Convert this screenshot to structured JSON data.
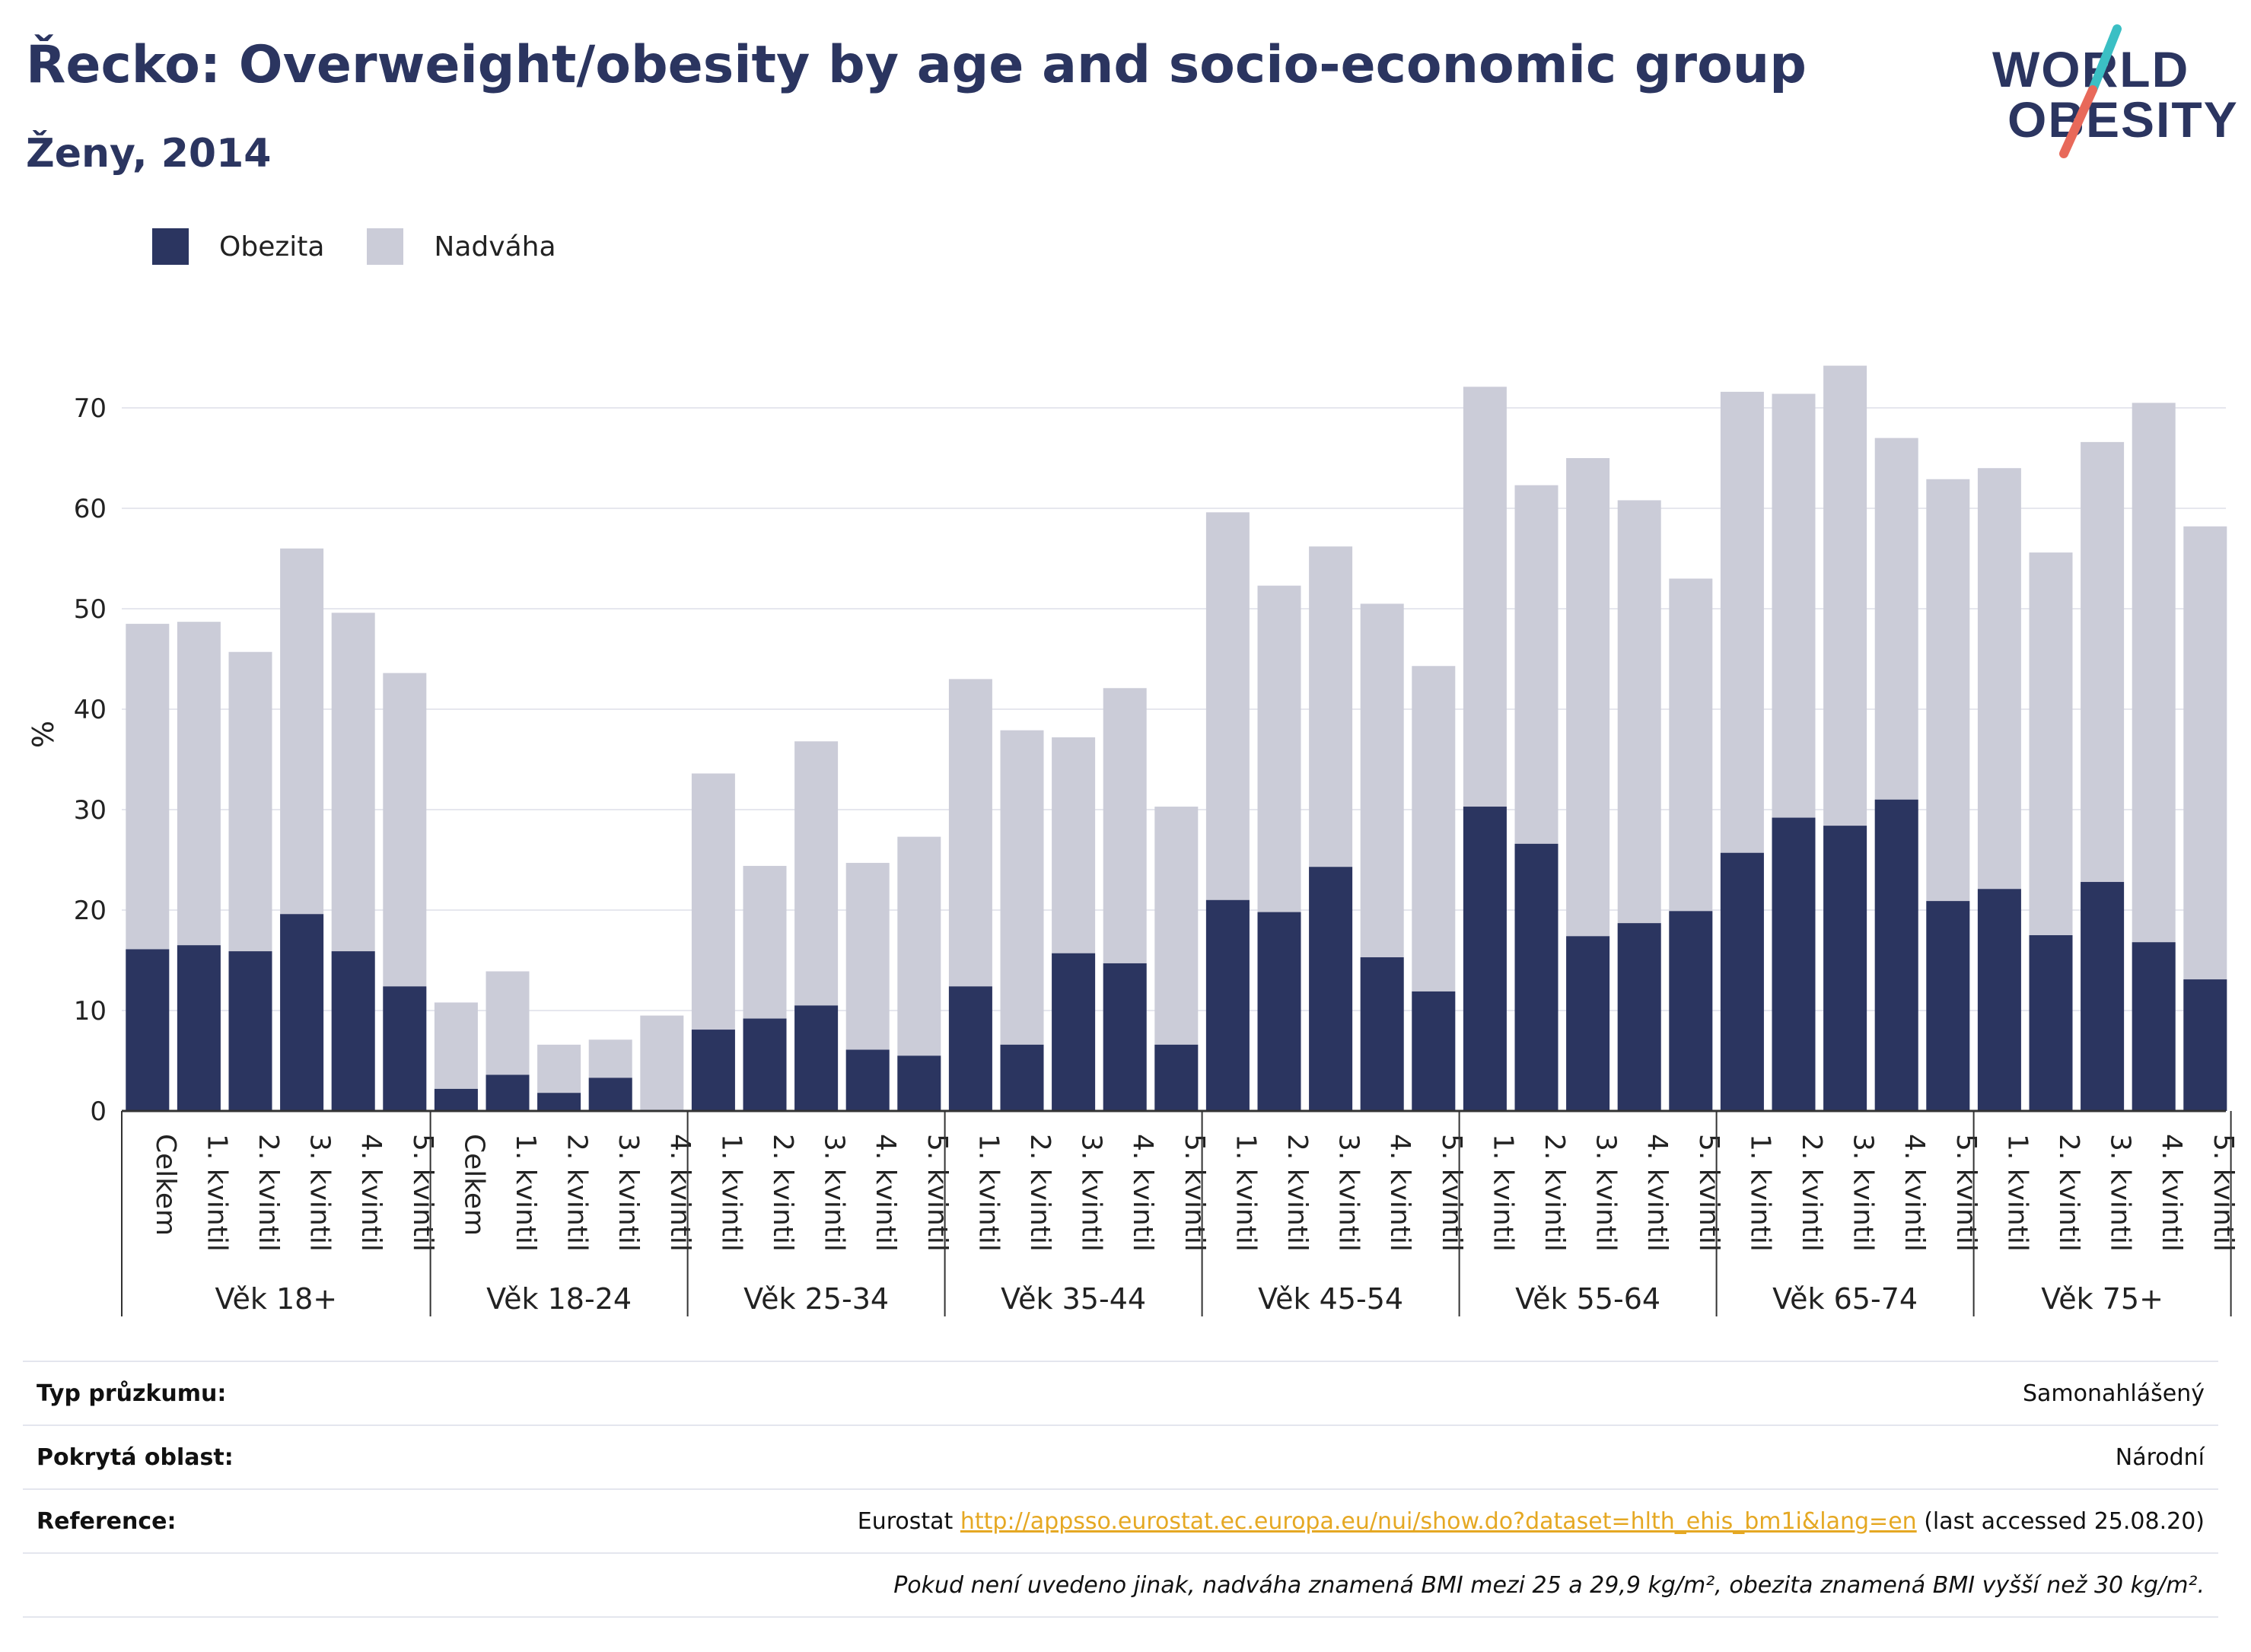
{
  "header": {
    "title": "Řecko: Overweight/obesity by age and socio-economic group",
    "subtitle": "Ženy, 2014"
  },
  "logo": {
    "line1": "WORLD",
    "line2": "OBESITY",
    "stroke_colors": [
      "#3bbfc4",
      "#e8695a"
    ]
  },
  "legend": [
    {
      "label": "Obezita",
      "color": "#2b3560"
    },
    {
      "label": "Nadváha",
      "color": "#cbccd8"
    }
  ],
  "chart_data": {
    "type": "bar",
    "stacked": true,
    "ylabel": "%",
    "ylim": [
      0,
      75
    ],
    "yticks": [
      0,
      10,
      20,
      30,
      40,
      50,
      60,
      70
    ],
    "grid": true,
    "legend_position": "top-left",
    "groups": [
      {
        "label": "Věk 18+",
        "categories": [
          "Celkem",
          "1. kvintil",
          "2. kvintil",
          "3. kvintil",
          "4. kvintil",
          "5. kvintil"
        ],
        "obezita": [
          16.1,
          16.5,
          15.9,
          19.6,
          15.9,
          12.4
        ],
        "total": [
          48.5,
          48.7,
          45.7,
          56.0,
          49.6,
          43.6
        ]
      },
      {
        "label": "Věk 18-24",
        "categories": [
          "Celkem",
          "1. kvintil",
          "2. kvintil",
          "3. kvintil",
          "4. kvintil"
        ],
        "obezita": [
          2.2,
          3.6,
          1.8,
          3.3,
          0
        ],
        "total": [
          10.8,
          13.9,
          6.6,
          7.1,
          9.5
        ]
      },
      {
        "label": "Věk 25-34",
        "categories": [
          "1. kvintil",
          "2. kvintil",
          "3. kvintil",
          "4. kvintil",
          "5. kvintil"
        ],
        "obezita": [
          8.1,
          9.2,
          10.5,
          6.1,
          5.5
        ],
        "total": [
          33.6,
          24.4,
          36.8,
          24.7,
          27.3
        ]
      },
      {
        "label": "Věk 35-44",
        "categories": [
          "1. kvintil",
          "2. kvintil",
          "3. kvintil",
          "4. kvintil",
          "5. kvintil"
        ],
        "obezita": [
          12.4,
          6.6,
          15.7,
          14.7,
          6.6
        ],
        "total": [
          43.0,
          37.9,
          37.2,
          42.1,
          30.3
        ]
      },
      {
        "label": "Věk 45-54",
        "categories": [
          "1. kvintil",
          "2. kvintil",
          "3. kvintil",
          "4. kvintil",
          "5. kvintil"
        ],
        "obezita": [
          21.0,
          19.8,
          24.3,
          15.3,
          11.9
        ],
        "total": [
          59.6,
          52.3,
          56.2,
          50.5,
          44.3
        ]
      },
      {
        "label": "Věk 55-64",
        "categories": [
          "1. kvintil",
          "2. kvintil",
          "3. kvintil",
          "4. kvintil",
          "5. kvintil"
        ],
        "obezita": [
          30.3,
          26.6,
          17.4,
          18.7,
          19.9
        ],
        "total": [
          72.1,
          62.3,
          65.0,
          60.8,
          53.0
        ]
      },
      {
        "label": "Věk 65-74",
        "categories": [
          "1. kvintil",
          "2. kvintil",
          "3. kvintil",
          "4. kvintil",
          "5. kvintil"
        ],
        "obezita": [
          25.7,
          29.2,
          28.4,
          31.0,
          20.9
        ],
        "total": [
          71.6,
          71.4,
          74.2,
          67.0,
          62.9
        ]
      },
      {
        "label": "Věk 75+",
        "categories": [
          "1. kvintil",
          "2. kvintil",
          "3. kvintil",
          "4. kvintil",
          "5. kvintil"
        ],
        "obezita": [
          22.1,
          17.5,
          22.8,
          16.8,
          13.1
        ],
        "total": [
          64.0,
          55.6,
          66.6,
          70.5,
          58.2
        ]
      }
    ]
  },
  "meta": {
    "survey_label": "Typ průzkumu:",
    "survey_value": "Samonahlášený",
    "area_label": "Pokrytá oblast:",
    "area_value": "Národní",
    "ref_label": "Reference:",
    "ref_prefix": "Eurostat",
    "ref_link": "http://appsso.eurostat.ec.europa.eu/nui/show.do?dataset=hlth_ehis_bm1i&lang=en",
    "ref_suffix": "(last accessed 25.08.20)",
    "note": "Pokud není uvedeno jinak, nadváha znamená BMI mezi 25 a 29,9 kg/m², obezita znamená BMI vyšší než 30 kg/m²."
  }
}
